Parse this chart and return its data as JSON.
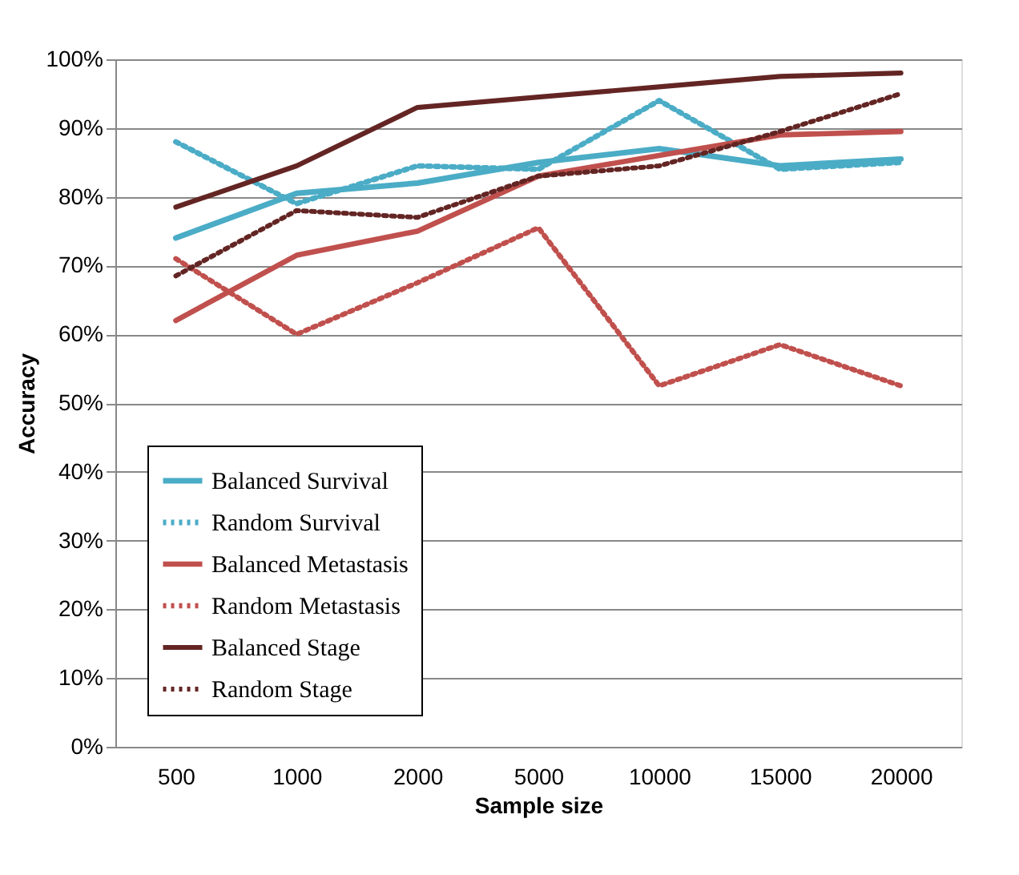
{
  "chart_data": {
    "type": "line",
    "xlabel": "Sample size",
    "ylabel": "Accuracy",
    "categories": [
      "500",
      "1000",
      "2000",
      "5000",
      "10000",
      "15000",
      "20000"
    ],
    "series": [
      {
        "name": "Balanced Survival",
        "color": "#4bacc6",
        "line_style": "solid",
        "values": [
          74,
          80.5,
          82,
          85,
          87,
          84.5,
          85.5
        ]
      },
      {
        "name": "Random Survival",
        "color": "#4bacc6",
        "line_style": "dotted",
        "values": [
          88,
          79,
          84.5,
          84,
          94,
          84,
          85
        ]
      },
      {
        "name": "Balanced Metastasis",
        "color": "#c0504d",
        "line_style": "solid",
        "values": [
          62,
          71.5,
          75,
          83,
          86,
          89,
          89.5
        ]
      },
      {
        "name": "Random Metastasis",
        "color": "#c0504d",
        "line_style": "dotted",
        "values": [
          71,
          60,
          67.5,
          75.5,
          52.5,
          58.5,
          52.5
        ]
      },
      {
        "name": "Balanced Stage",
        "color": "#632523",
        "line_style": "solid",
        "values": [
          78.5,
          84.5,
          93,
          94.5,
          96,
          97.5,
          98
        ]
      },
      {
        "name": "Random Stage",
        "color": "#632523",
        "line_style": "dotted",
        "values": [
          68.5,
          78,
          77,
          83,
          84.5,
          89.5,
          95
        ]
      }
    ],
    "ylim": [
      0,
      100
    ],
    "yticks": [
      {
        "value": 0,
        "label": "0%"
      },
      {
        "value": 10,
        "label": "10%"
      },
      {
        "value": 20,
        "label": "20%"
      },
      {
        "value": 30,
        "label": "30%"
      },
      {
        "value": 40,
        "label": "40%"
      },
      {
        "value": 50,
        "label": "50%"
      },
      {
        "value": 60,
        "label": "60%"
      },
      {
        "value": 70,
        "label": "70%"
      },
      {
        "value": 80,
        "label": "80%"
      },
      {
        "value": 90,
        "label": "90%"
      },
      {
        "value": 100,
        "label": "100%"
      }
    ],
    "grid": "y",
    "legend": "bottom left",
    "marker": "none"
  }
}
